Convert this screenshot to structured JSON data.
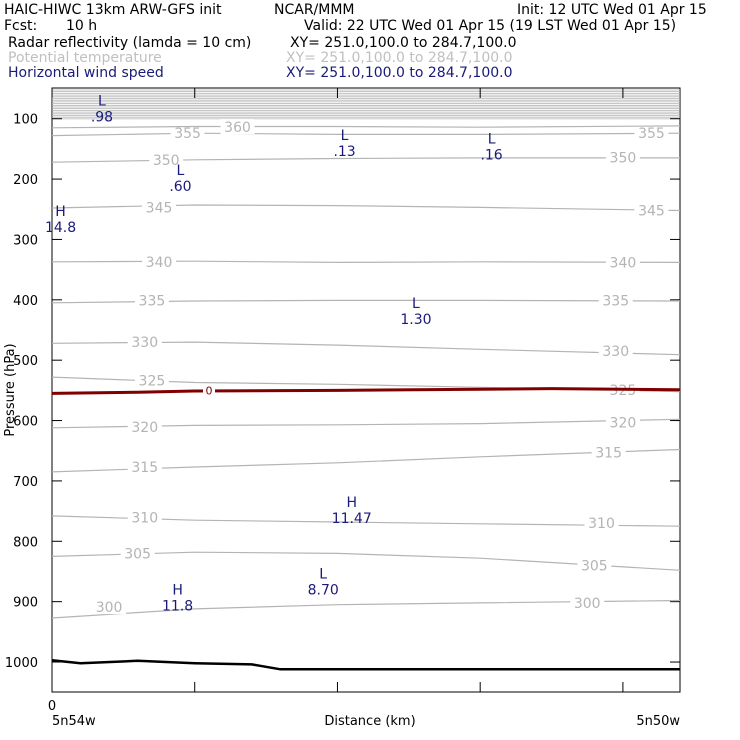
{
  "header": {
    "model": "HAIC-HIWC 13km ARW-GFS init",
    "org": "NCAR/MMM",
    "init": "Init: 12 UTC Wed 01 Apr 15",
    "fcst_label": "Fcst:",
    "fcst_value": "10 h",
    "valid": "Valid: 22 UTC Wed 01 Apr 15 (19 LST Wed 01 Apr 15)",
    "fields": [
      {
        "name": "Radar reflectivity (lamda = 10 cm)",
        "xy": "XY= 251.0,100.0 to 284.7,100.0",
        "color": "#000000"
      },
      {
        "name": "Potential temperature",
        "xy": "XY= 251.0,100.0 to 284.7,100.0",
        "color": "#c0c0c0"
      },
      {
        "name": "Horizontal wind speed",
        "xy": "XY= 251.0,100.0 to 284.7,100.0",
        "color": "#1a1a7a"
      }
    ]
  },
  "axes": {
    "ylabel": "Pressure (hPa)",
    "xlabel": "Distance (km)",
    "yticks": [
      "100",
      "200",
      "300",
      "400",
      "500",
      "600",
      "700",
      "800",
      "900",
      "1000"
    ],
    "x_zero": "0",
    "left_label": "5n54w",
    "right_label": "5n50w"
  },
  "colors": {
    "theta": "#b4b4b4",
    "wind_text": "#1a1a7a",
    "freezing": "#800000",
    "terrain": "#000000"
  },
  "chart_data": {
    "type": "line",
    "title": "HAIC-HIWC 13km ARW-GFS init",
    "xlabel": "Distance (km)",
    "ylabel": "Pressure (hPa)",
    "ylim": [
      1050,
      50
    ],
    "xlim": [
      0,
      440
    ],
    "y_scale": "linear-pressure",
    "grid": false,
    "theta_contours": [
      {
        "value": 300,
        "points": [
          [
            0,
            927
          ],
          [
            100,
            912
          ],
          [
            200,
            905
          ],
          [
            300,
            902
          ],
          [
            440,
            898
          ]
        ],
        "labels": [
          {
            "x": 40,
            "y": 909
          },
          {
            "x": 375,
            "y": 902
          }
        ]
      },
      {
        "value": 305,
        "points": [
          [
            0,
            825
          ],
          [
            100,
            818
          ],
          [
            200,
            820
          ],
          [
            300,
            828
          ],
          [
            440,
            848
          ]
        ],
        "labels": [
          {
            "x": 60,
            "y": 820
          },
          {
            "x": 380,
            "y": 840
          }
        ]
      },
      {
        "value": 310,
        "points": [
          [
            0,
            758
          ],
          [
            100,
            765
          ],
          [
            200,
            768
          ],
          [
            300,
            771
          ],
          [
            440,
            775
          ]
        ],
        "labels": [
          {
            "x": 65,
            "y": 761
          },
          {
            "x": 385,
            "y": 770
          }
        ]
      },
      {
        "value": 315,
        "points": [
          [
            0,
            685
          ],
          [
            100,
            677
          ],
          [
            200,
            670
          ],
          [
            300,
            660
          ],
          [
            440,
            648
          ]
        ],
        "labels": [
          {
            "x": 65,
            "y": 677
          },
          {
            "x": 390,
            "y": 653
          }
        ]
      },
      {
        "value": 320,
        "points": [
          [
            0,
            612
          ],
          [
            100,
            608
          ],
          [
            200,
            607
          ],
          [
            300,
            605
          ],
          [
            440,
            598
          ]
        ],
        "labels": [
          {
            "x": 65,
            "y": 611
          },
          {
            "x": 400,
            "y": 603
          }
        ]
      },
      {
        "value": 325,
        "points": [
          [
            0,
            528
          ],
          [
            100,
            537
          ],
          [
            200,
            540
          ],
          [
            300,
            545
          ],
          [
            440,
            552
          ]
        ],
        "labels": [
          {
            "x": 70,
            "y": 534
          },
          {
            "x": 400,
            "y": 549
          }
        ]
      },
      {
        "value": 330,
        "points": [
          [
            0,
            472
          ],
          [
            100,
            470
          ],
          [
            200,
            475
          ],
          [
            300,
            482
          ],
          [
            440,
            491
          ]
        ],
        "labels": [
          {
            "x": 65,
            "y": 470
          },
          {
            "x": 395,
            "y": 485
          }
        ]
      },
      {
        "value": 335,
        "points": [
          [
            0,
            405
          ],
          [
            100,
            402
          ],
          [
            200,
            401
          ],
          [
            300,
            401
          ],
          [
            440,
            402
          ]
        ],
        "labels": [
          {
            "x": 70,
            "y": 401
          },
          {
            "x": 395,
            "y": 401
          }
        ]
      },
      {
        "value": 340,
        "points": [
          [
            0,
            337
          ],
          [
            100,
            336
          ],
          [
            200,
            338
          ],
          [
            300,
            337
          ],
          [
            440,
            338
          ]
        ],
        "labels": [
          {
            "x": 75,
            "y": 337
          },
          {
            "x": 400,
            "y": 338
          }
        ]
      },
      {
        "value": 345,
        "points": [
          [
            0,
            248
          ],
          [
            100,
            243
          ],
          [
            200,
            244
          ],
          [
            300,
            247
          ],
          [
            440,
            252
          ]
        ],
        "labels": [
          {
            "x": 75,
            "y": 247
          },
          {
            "x": 420,
            "y": 252
          }
        ]
      },
      {
        "value": 350,
        "points": [
          [
            0,
            172
          ],
          [
            100,
            168
          ],
          [
            200,
            166
          ],
          [
            300,
            165
          ],
          [
            440,
            165
          ]
        ],
        "labels": [
          {
            "x": 80,
            "y": 168
          },
          {
            "x": 400,
            "y": 164
          }
        ]
      },
      {
        "value": 355,
        "points": [
          [
            0,
            128
          ],
          [
            100,
            124
          ],
          [
            200,
            126
          ],
          [
            300,
            126
          ],
          [
            440,
            124
          ]
        ],
        "labels": [
          {
            "x": 95,
            "y": 124
          },
          {
            "x": 420,
            "y": 124
          }
        ]
      },
      {
        "value": 360,
        "points": [
          [
            0,
            115
          ],
          [
            100,
            113
          ],
          [
            200,
            113
          ],
          [
            300,
            114
          ],
          [
            440,
            112
          ]
        ],
        "labels": [
          {
            "x": 130,
            "y": 114
          }
        ]
      }
    ],
    "freezing_level": {
      "value": 0,
      "points": [
        [
          0,
          555
        ],
        [
          60,
          553
        ],
        [
          100,
          551
        ],
        [
          200,
          550
        ],
        [
          300,
          548
        ],
        [
          350,
          547
        ],
        [
          400,
          548
        ],
        [
          440,
          549
        ]
      ],
      "label": {
        "x": 110,
        "y": 550
      }
    },
    "terrain_pressure": {
      "points": [
        [
          0,
          997
        ],
        [
          20,
          1002
        ],
        [
          60,
          998
        ],
        [
          100,
          1002
        ],
        [
          140,
          1004
        ],
        [
          160,
          1012
        ],
        [
          440,
          1012
        ]
      ]
    },
    "wind_extrema": [
      {
        "type": "L",
        "value": ".98",
        "x": 35,
        "y": 85
      },
      {
        "type": "L",
        "value": ".13",
        "x": 205,
        "y": 142
      },
      {
        "type": "L",
        "value": ".16",
        "x": 308,
        "y": 148
      },
      {
        "type": "L",
        "value": ".60",
        "x": 90,
        "y": 200
      },
      {
        "type": "H",
        "value": "14.8",
        "x": 6,
        "y": 268
      },
      {
        "type": "L",
        "value": "1.30",
        "x": 255,
        "y": 420
      },
      {
        "type": "H",
        "value": "11.47",
        "x": 210,
        "y": 750
      },
      {
        "type": "L",
        "value": "8.70",
        "x": 190,
        "y": 868
      },
      {
        "type": "H",
        "value": "11.8",
        "x": 88,
        "y": 895
      }
    ]
  }
}
